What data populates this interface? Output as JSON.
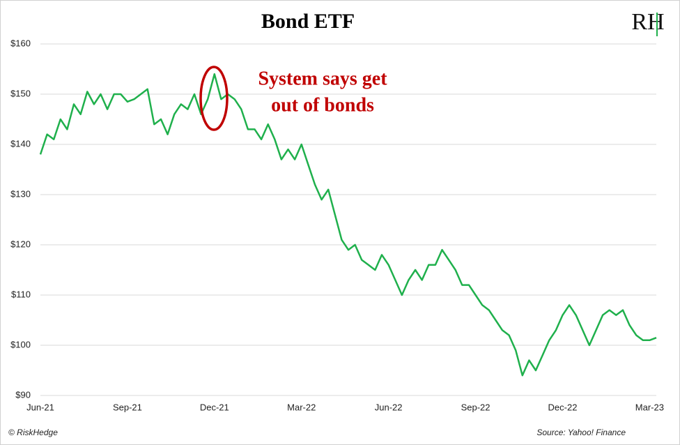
{
  "chart_data": {
    "type": "line",
    "title": "Bond ETF",
    "logo": "RH",
    "annotation": [
      "System says get",
      "out of bonds"
    ],
    "footer_left": "© RiskHedge",
    "footer_right": "Source: Yahoo! Finance",
    "categories": [
      "Jun-21",
      null,
      null,
      null,
      null,
      null,
      null,
      null,
      null,
      null,
      null,
      null,
      null,
      "Sep-21",
      null,
      null,
      null,
      null,
      null,
      null,
      null,
      null,
      null,
      null,
      null,
      null,
      "Dec-21",
      null,
      null,
      null,
      null,
      null,
      null,
      null,
      null,
      null,
      null,
      null,
      null,
      "Mar-22",
      null,
      null,
      null,
      null,
      null,
      null,
      null,
      null,
      null,
      null,
      null,
      null,
      "Jun-22",
      null,
      null,
      null,
      null,
      null,
      null,
      null,
      null,
      null,
      null,
      null,
      null,
      "Sep-22",
      null,
      null,
      null,
      null,
      null,
      null,
      null,
      null,
      null,
      null,
      null,
      null,
      "Dec-22",
      null,
      null,
      null,
      null,
      null,
      null,
      null,
      null,
      null,
      null,
      null,
      null,
      "Mar-23",
      null
    ],
    "series": [
      {
        "name": "Bond ETF",
        "color": "#1fb04c",
        "values": [
          138,
          142,
          141,
          145,
          143,
          148,
          146,
          150.5,
          148,
          150,
          147,
          150,
          150,
          148.5,
          149,
          150,
          151,
          144,
          145,
          142,
          146,
          148,
          147,
          150,
          146,
          149,
          154,
          149,
          150,
          149,
          147,
          143,
          143,
          141,
          144,
          141,
          137,
          139,
          137,
          140,
          136,
          132,
          129,
          131,
          126,
          121,
          119,
          120,
          117,
          116,
          115,
          118,
          116,
          113,
          110,
          113,
          115,
          113,
          116,
          116,
          119,
          117,
          115,
          112,
          112,
          110,
          108,
          107,
          105,
          103,
          102,
          99,
          94,
          97,
          95,
          98,
          101,
          103,
          106,
          108,
          106,
          103,
          100,
          103,
          106,
          107,
          106,
          107,
          104,
          102,
          101,
          101,
          101.5
        ]
      }
    ],
    "ylim": [
      90,
      160
    ],
    "yticks": [
      {
        "value": 90,
        "label": "$90"
      },
      {
        "value": 100,
        "label": "$100"
      },
      {
        "value": 110,
        "label": "$110"
      },
      {
        "value": 120,
        "label": "$120"
      },
      {
        "value": 130,
        "label": "$130"
      },
      {
        "value": 140,
        "label": "$140"
      },
      {
        "value": 150,
        "label": "$150"
      },
      {
        "value": 160,
        "label": "$160"
      }
    ],
    "grid": true
  }
}
